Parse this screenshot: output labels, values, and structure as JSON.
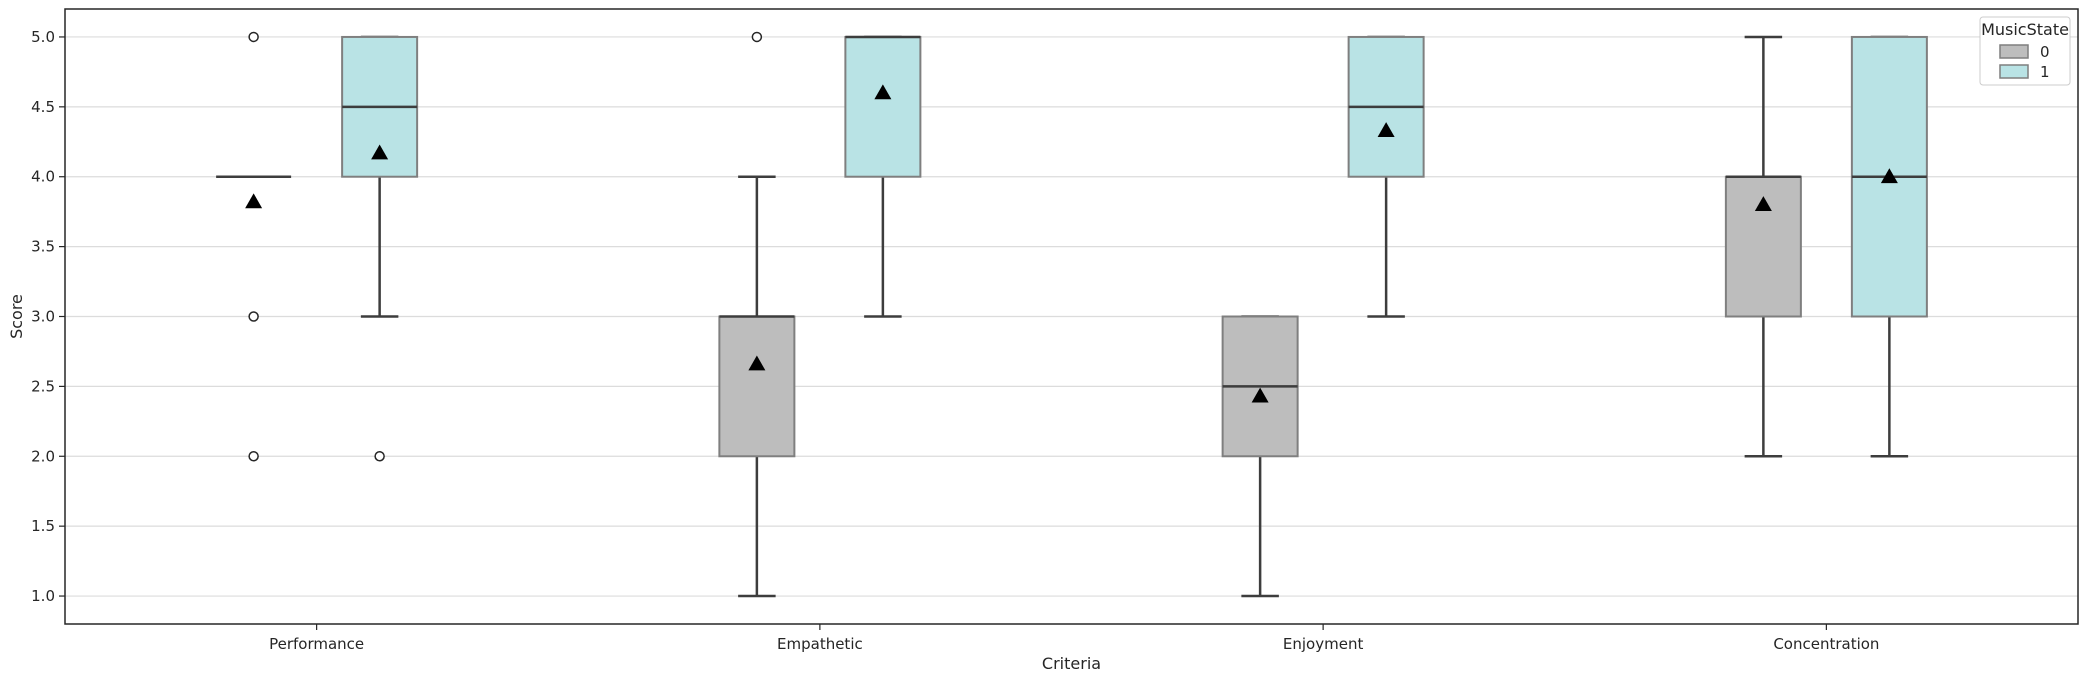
{
  "chart_data": {
    "type": "box",
    "xlabel": "Criteria",
    "ylabel": "Score",
    "ylim": [
      0.8,
      5.2
    ],
    "yticks": [
      "1.0",
      "1.5",
      "2.0",
      "2.5",
      "3.0",
      "3.5",
      "4.0",
      "4.5",
      "5.0"
    ],
    "grid": "horizontal",
    "legend": {
      "title": "MusicState",
      "position": "top-right",
      "entries": [
        "0",
        "1"
      ]
    },
    "categories": [
      "Performance",
      "Empathetic",
      "Enjoyment",
      "Concentration"
    ],
    "series": [
      {
        "name": "0",
        "color": "#bdbdbd",
        "boxes": [
          {
            "q1": 4.0,
            "median": 4.0,
            "q3": 4.0,
            "whisker_low": 4.0,
            "whisker_high": 4.0,
            "mean": 3.82,
            "outliers": [
              5.0,
              3.0,
              2.0
            ]
          },
          {
            "q1": 2.0,
            "median": 3.0,
            "q3": 3.0,
            "whisker_low": 1.0,
            "whisker_high": 4.0,
            "mean": 2.66,
            "outliers": [
              5.0
            ]
          },
          {
            "q1": 2.0,
            "median": 2.5,
            "q3": 3.0,
            "whisker_low": 1.0,
            "whisker_high": 3.0,
            "mean": 2.43,
            "outliers": []
          },
          {
            "q1": 3.0,
            "median": 4.0,
            "q3": 4.0,
            "whisker_low": 2.0,
            "whisker_high": 5.0,
            "mean": 3.8,
            "outliers": []
          }
        ]
      },
      {
        "name": "1",
        "color": "#b9e3e5",
        "boxes": [
          {
            "q1": 4.0,
            "median": 4.5,
            "q3": 5.0,
            "whisker_low": 3.0,
            "whisker_high": 5.0,
            "mean": 4.17,
            "outliers": [
              2.0
            ]
          },
          {
            "q1": 4.0,
            "median": 5.0,
            "q3": 5.0,
            "whisker_low": 3.0,
            "whisker_high": 5.0,
            "mean": 4.6,
            "outliers": []
          },
          {
            "q1": 4.0,
            "median": 4.5,
            "q3": 5.0,
            "whisker_low": 3.0,
            "whisker_high": 5.0,
            "mean": 4.33,
            "outliers": []
          },
          {
            "q1": 3.0,
            "median": 4.0,
            "q3": 5.0,
            "whisker_low": 2.0,
            "whisker_high": 5.0,
            "mean": 4.0,
            "outliers": []
          }
        ]
      }
    ]
  }
}
